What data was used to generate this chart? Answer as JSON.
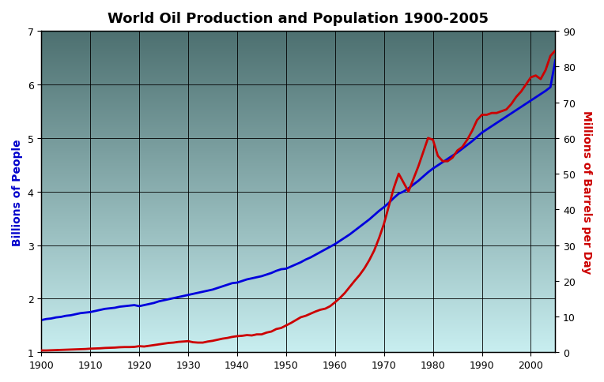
{
  "title": "World Oil Production and Population 1900-2005",
  "title_fontsize": 13,
  "title_fontweight": "bold",
  "ylabel_left": "Billions of People",
  "ylabel_right": "Millions of Barrels per Day",
  "ylabel_left_color": "#0000CC",
  "ylabel_right_color": "#CC0000",
  "xlim": [
    1900,
    2005
  ],
  "ylim_left": [
    1.0,
    7.0
  ],
  "ylim_right": [
    0,
    90
  ],
  "xticks": [
    1900,
    1910,
    1920,
    1930,
    1940,
    1950,
    1960,
    1970,
    1980,
    1990,
    2000
  ],
  "yticks_left": [
    1,
    2,
    3,
    4,
    5,
    6,
    7
  ],
  "yticks_right": [
    0,
    10,
    20,
    30,
    40,
    50,
    60,
    70,
    80,
    90
  ],
  "bg_top_color": "#4d7070",
  "bg_bottom_color": "#c8eef0",
  "pop_color": "#0000DD",
  "oil_color": "#CC0000",
  "pop_linewidth": 2.0,
  "oil_linewidth": 2.0,
  "population_years": [
    1900,
    1901,
    1902,
    1903,
    1904,
    1905,
    1906,
    1907,
    1908,
    1909,
    1910,
    1911,
    1912,
    1913,
    1914,
    1915,
    1916,
    1917,
    1918,
    1919,
    1920,
    1921,
    1922,
    1923,
    1924,
    1925,
    1926,
    1927,
    1928,
    1929,
    1930,
    1931,
    1932,
    1933,
    1934,
    1935,
    1936,
    1937,
    1938,
    1939,
    1940,
    1941,
    1942,
    1943,
    1944,
    1945,
    1946,
    1947,
    1948,
    1949,
    1950,
    1951,
    1952,
    1953,
    1954,
    1955,
    1956,
    1957,
    1958,
    1959,
    1960,
    1961,
    1962,
    1963,
    1964,
    1965,
    1966,
    1967,
    1968,
    1969,
    1970,
    1971,
    1972,
    1973,
    1974,
    1975,
    1976,
    1977,
    1978,
    1979,
    1980,
    1981,
    1982,
    1983,
    1984,
    1985,
    1986,
    1987,
    1988,
    1989,
    1990,
    1991,
    1992,
    1993,
    1994,
    1995,
    1996,
    1997,
    1998,
    1999,
    2000,
    2001,
    2002,
    2003,
    2004,
    2005
  ],
  "population_values": [
    1.6,
    1.62,
    1.63,
    1.65,
    1.66,
    1.68,
    1.69,
    1.71,
    1.73,
    1.74,
    1.75,
    1.77,
    1.79,
    1.81,
    1.82,
    1.83,
    1.85,
    1.86,
    1.87,
    1.88,
    1.86,
    1.88,
    1.9,
    1.92,
    1.95,
    1.97,
    1.99,
    2.01,
    2.03,
    2.05,
    2.07,
    2.09,
    2.11,
    2.13,
    2.15,
    2.17,
    2.2,
    2.23,
    2.26,
    2.29,
    2.3,
    2.33,
    2.36,
    2.38,
    2.4,
    2.42,
    2.45,
    2.48,
    2.52,
    2.55,
    2.56,
    2.6,
    2.64,
    2.68,
    2.73,
    2.77,
    2.82,
    2.87,
    2.92,
    2.97,
    3.02,
    3.08,
    3.14,
    3.2,
    3.27,
    3.34,
    3.41,
    3.48,
    3.56,
    3.64,
    3.71,
    3.79,
    3.88,
    3.96,
    4.0,
    4.06,
    4.13,
    4.2,
    4.28,
    4.36,
    4.43,
    4.49,
    4.55,
    4.61,
    4.67,
    4.73,
    4.8,
    4.87,
    4.94,
    5.02,
    5.1,
    5.16,
    5.22,
    5.28,
    5.34,
    5.4,
    5.46,
    5.52,
    5.58,
    5.64,
    5.7,
    5.76,
    5.82,
    5.88,
    5.95,
    6.45
  ],
  "oil_years": [
    1900,
    1901,
    1902,
    1903,
    1904,
    1905,
    1906,
    1907,
    1908,
    1909,
    1910,
    1911,
    1912,
    1913,
    1914,
    1915,
    1916,
    1917,
    1918,
    1919,
    1920,
    1921,
    1922,
    1923,
    1924,
    1925,
    1926,
    1927,
    1928,
    1929,
    1930,
    1931,
    1932,
    1933,
    1934,
    1935,
    1936,
    1937,
    1938,
    1939,
    1940,
    1941,
    1942,
    1943,
    1944,
    1945,
    1946,
    1947,
    1948,
    1949,
    1950,
    1951,
    1952,
    1953,
    1954,
    1955,
    1956,
    1957,
    1958,
    1959,
    1960,
    1961,
    1962,
    1963,
    1964,
    1965,
    1966,
    1967,
    1968,
    1969,
    1970,
    1971,
    1972,
    1973,
    1974,
    1975,
    1976,
    1977,
    1978,
    1979,
    1980,
    1981,
    1982,
    1983,
    1984,
    1985,
    1986,
    1987,
    1988,
    1989,
    1990,
    1991,
    1992,
    1993,
    1994,
    1995,
    1996,
    1997,
    1998,
    1999,
    2000,
    2001,
    2002,
    2003,
    2004,
    2005
  ],
  "oil_values": [
    0.5,
    0.5,
    0.55,
    0.6,
    0.65,
    0.7,
    0.75,
    0.8,
    0.85,
    0.9,
    1.0,
    1.05,
    1.1,
    1.2,
    1.25,
    1.3,
    1.4,
    1.45,
    1.45,
    1.5,
    1.7,
    1.6,
    1.8,
    2.0,
    2.2,
    2.4,
    2.6,
    2.7,
    2.9,
    3.0,
    3.1,
    2.8,
    2.7,
    2.7,
    3.0,
    3.2,
    3.5,
    3.8,
    4.0,
    4.3,
    4.5,
    4.6,
    4.8,
    4.7,
    5.0,
    5.0,
    5.5,
    5.8,
    6.5,
    6.8,
    7.5,
    8.2,
    9.0,
    9.8,
    10.2,
    10.8,
    11.4,
    11.9,
    12.2,
    12.9,
    14.0,
    15.2,
    16.6,
    18.3,
    20.0,
    21.6,
    23.5,
    25.8,
    28.5,
    32.0,
    36.0,
    41.0,
    46.0,
    50.0,
    47.5,
    45.0,
    48.5,
    52.0,
    56.0,
    60.0,
    59.5,
    55.0,
    53.5,
    53.5,
    54.5,
    56.5,
    57.5,
    59.5,
    62.0,
    65.0,
    66.5,
    66.5,
    67.0,
    67.0,
    67.5,
    68.0,
    69.5,
    71.5,
    73.0,
    75.0,
    77.0,
    77.5,
    76.5,
    79.0,
    83.0,
    84.5
  ],
  "fig_width": 7.64,
  "fig_height": 4.85,
  "dpi": 100
}
